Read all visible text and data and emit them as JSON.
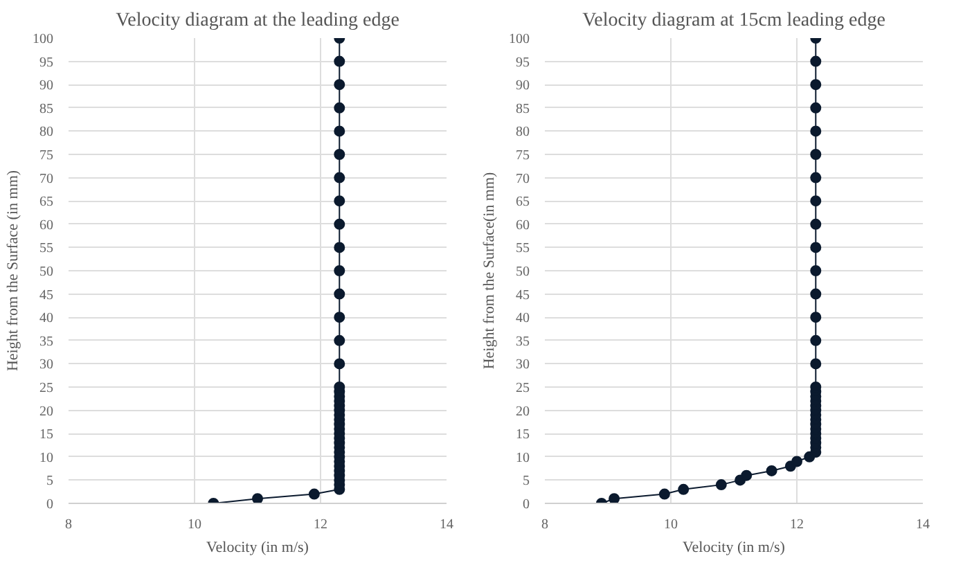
{
  "chart_data": [
    {
      "type": "line",
      "title": "Velocity diagram at the leading edge",
      "xlabel": "Velocity (in m/s)",
      "ylabel": "Height from the Surface (in mm)",
      "marker": "circle",
      "line_style": "solid",
      "grid": true,
      "color": "#0b1a2e",
      "xlim": [
        8,
        14
      ],
      "xticks": [
        8,
        10,
        12,
        14
      ],
      "ylim": [
        0,
        100
      ],
      "yticks": [
        0,
        5,
        10,
        15,
        20,
        25,
        30,
        35,
        40,
        45,
        50,
        55,
        60,
        65,
        70,
        75,
        80,
        85,
        90,
        95,
        100
      ],
      "x": [
        10.3,
        11.0,
        11.9,
        12.3,
        12.3,
        12.3,
        12.3,
        12.3,
        12.3,
        12.3,
        12.3,
        12.3,
        12.3,
        12.3,
        12.3,
        12.3,
        12.3,
        12.3,
        12.3,
        12.3,
        12.3,
        12.3,
        12.3,
        12.3,
        12.3,
        12.3,
        12.3,
        12.3,
        12.3,
        12.3,
        12.3,
        12.3,
        12.3,
        12.3,
        12.3,
        12.3,
        12.3,
        12.3,
        12.3,
        12.3,
        12.3
      ],
      "values": [
        0,
        1,
        2,
        3,
        4,
        5,
        6,
        7,
        8,
        9,
        10,
        11,
        12,
        13,
        14,
        15,
        16,
        17,
        18,
        19,
        20,
        21,
        22,
        23,
        24,
        25,
        30,
        35,
        40,
        45,
        50,
        55,
        60,
        65,
        70,
        75,
        80,
        85,
        90,
        95,
        100
      ]
    },
    {
      "type": "line",
      "title": "Velocity diagram at 15cm leading edge",
      "xlabel": "Velocity (in m/s)",
      "ylabel": "Height from the Surface(in mm)",
      "marker": "circle",
      "line_style": "solid",
      "grid": true,
      "color": "#0b1a2e",
      "xlim": [
        8,
        14
      ],
      "xticks": [
        8,
        10,
        12,
        14
      ],
      "ylim": [
        0,
        100
      ],
      "yticks": [
        0,
        5,
        10,
        15,
        20,
        25,
        30,
        35,
        40,
        45,
        50,
        55,
        60,
        65,
        70,
        75,
        80,
        85,
        90,
        95,
        100
      ],
      "x": [
        8.9,
        9.1,
        9.9,
        10.2,
        10.8,
        11.1,
        11.2,
        11.6,
        11.9,
        12.0,
        12.2,
        12.3,
        12.3,
        12.3,
        12.3,
        12.3,
        12.3,
        12.3,
        12.3,
        12.3,
        12.3,
        12.3,
        12.3,
        12.3,
        12.3,
        12.3,
        12.3,
        12.3,
        12.3,
        12.3,
        12.3,
        12.3,
        12.3,
        12.3,
        12.3,
        12.3,
        12.3,
        12.3,
        12.3,
        12.3,
        12.3
      ],
      "values": [
        0,
        1,
        2,
        3,
        4,
        5,
        6,
        7,
        8,
        9,
        10,
        11,
        12,
        13,
        14,
        15,
        16,
        17,
        18,
        19,
        20,
        21,
        22,
        23,
        24,
        25,
        30,
        35,
        40,
        45,
        50,
        55,
        60,
        65,
        70,
        75,
        80,
        85,
        90,
        95,
        100
      ]
    }
  ]
}
